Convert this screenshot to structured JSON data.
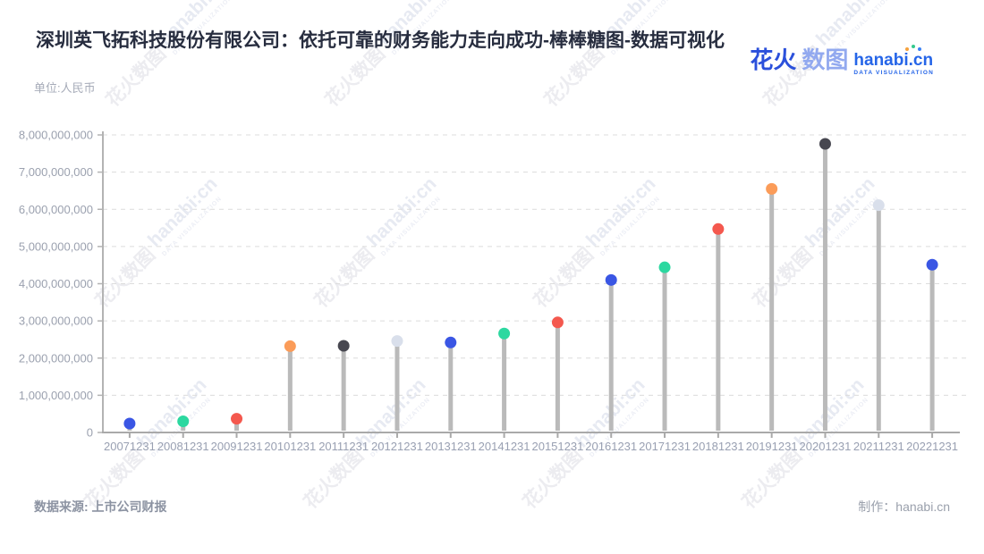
{
  "header": {
    "title": "深圳英飞拓科技股份有限公司：依托可靠的财务能力走向成功-棒棒糖图-数据可视化",
    "unit_label": "单位:人民币"
  },
  "logo": {
    "brand_cn_bold": "花火",
    "brand_cn_light": "数图",
    "brand_en": "hanabi.cn",
    "brand_sub": "DATA VISUALIZATION"
  },
  "watermark": {
    "text_cn": "花火数图",
    "text_en": "hanabi:cn",
    "text_sub": "DATA VISUALIZATION"
  },
  "footer": {
    "source": "数据来源: 上市公司财报",
    "credit": "制作：hanabi.cn"
  },
  "chart_data": {
    "type": "scatter",
    "variant": "lollipop",
    "title": "",
    "xlabel": "",
    "ylabel": "单位:人民币",
    "grid": true,
    "gridline_style": "dashed",
    "legend": "none",
    "ylim": [
      0,
      8000000000
    ],
    "y_tick_values": [
      0,
      1000000000,
      2000000000,
      3000000000,
      4000000000,
      5000000000,
      6000000000,
      7000000000,
      8000000000
    ],
    "y_tick_labels": [
      "0",
      "1,000,000,000",
      "2,000,000,000",
      "3,000,000,000",
      "4,000,000,000",
      "5,000,000,000",
      "6,000,000,000",
      "7,000,000,000",
      "8,000,000,000"
    ],
    "categories": [
      "20071231",
      "20081231",
      "20091231",
      "20101231",
      "20111231",
      "20121231",
      "20131231",
      "20141231",
      "20151231",
      "20161231",
      "20171231",
      "20181231",
      "20191231",
      "20201231",
      "20211231",
      "20221231"
    ],
    "values": [
      240000000,
      300000000,
      370000000,
      2320000000,
      2330000000,
      2460000000,
      2420000000,
      2660000000,
      2960000000,
      4100000000,
      4440000000,
      5470000000,
      6550000000,
      7760000000,
      6110000000,
      4510000000
    ],
    "point_colors": [
      "#3A56E4",
      "#2CD8A0",
      "#F4584E",
      "#FB9C59",
      "#474750",
      "#D9DFEB",
      "#3A56E4",
      "#2CD8A0",
      "#F4584E",
      "#3A56E4",
      "#2CD8A0",
      "#F4584E",
      "#FB9C59",
      "#474750",
      "#D9DFEB",
      "#3A56E4"
    ],
    "stem_color": "#bababa",
    "axis_color": "#a9a9a9",
    "gridline_color": "#dcdcdc",
    "tick_label_color": "#99a0b2"
  }
}
